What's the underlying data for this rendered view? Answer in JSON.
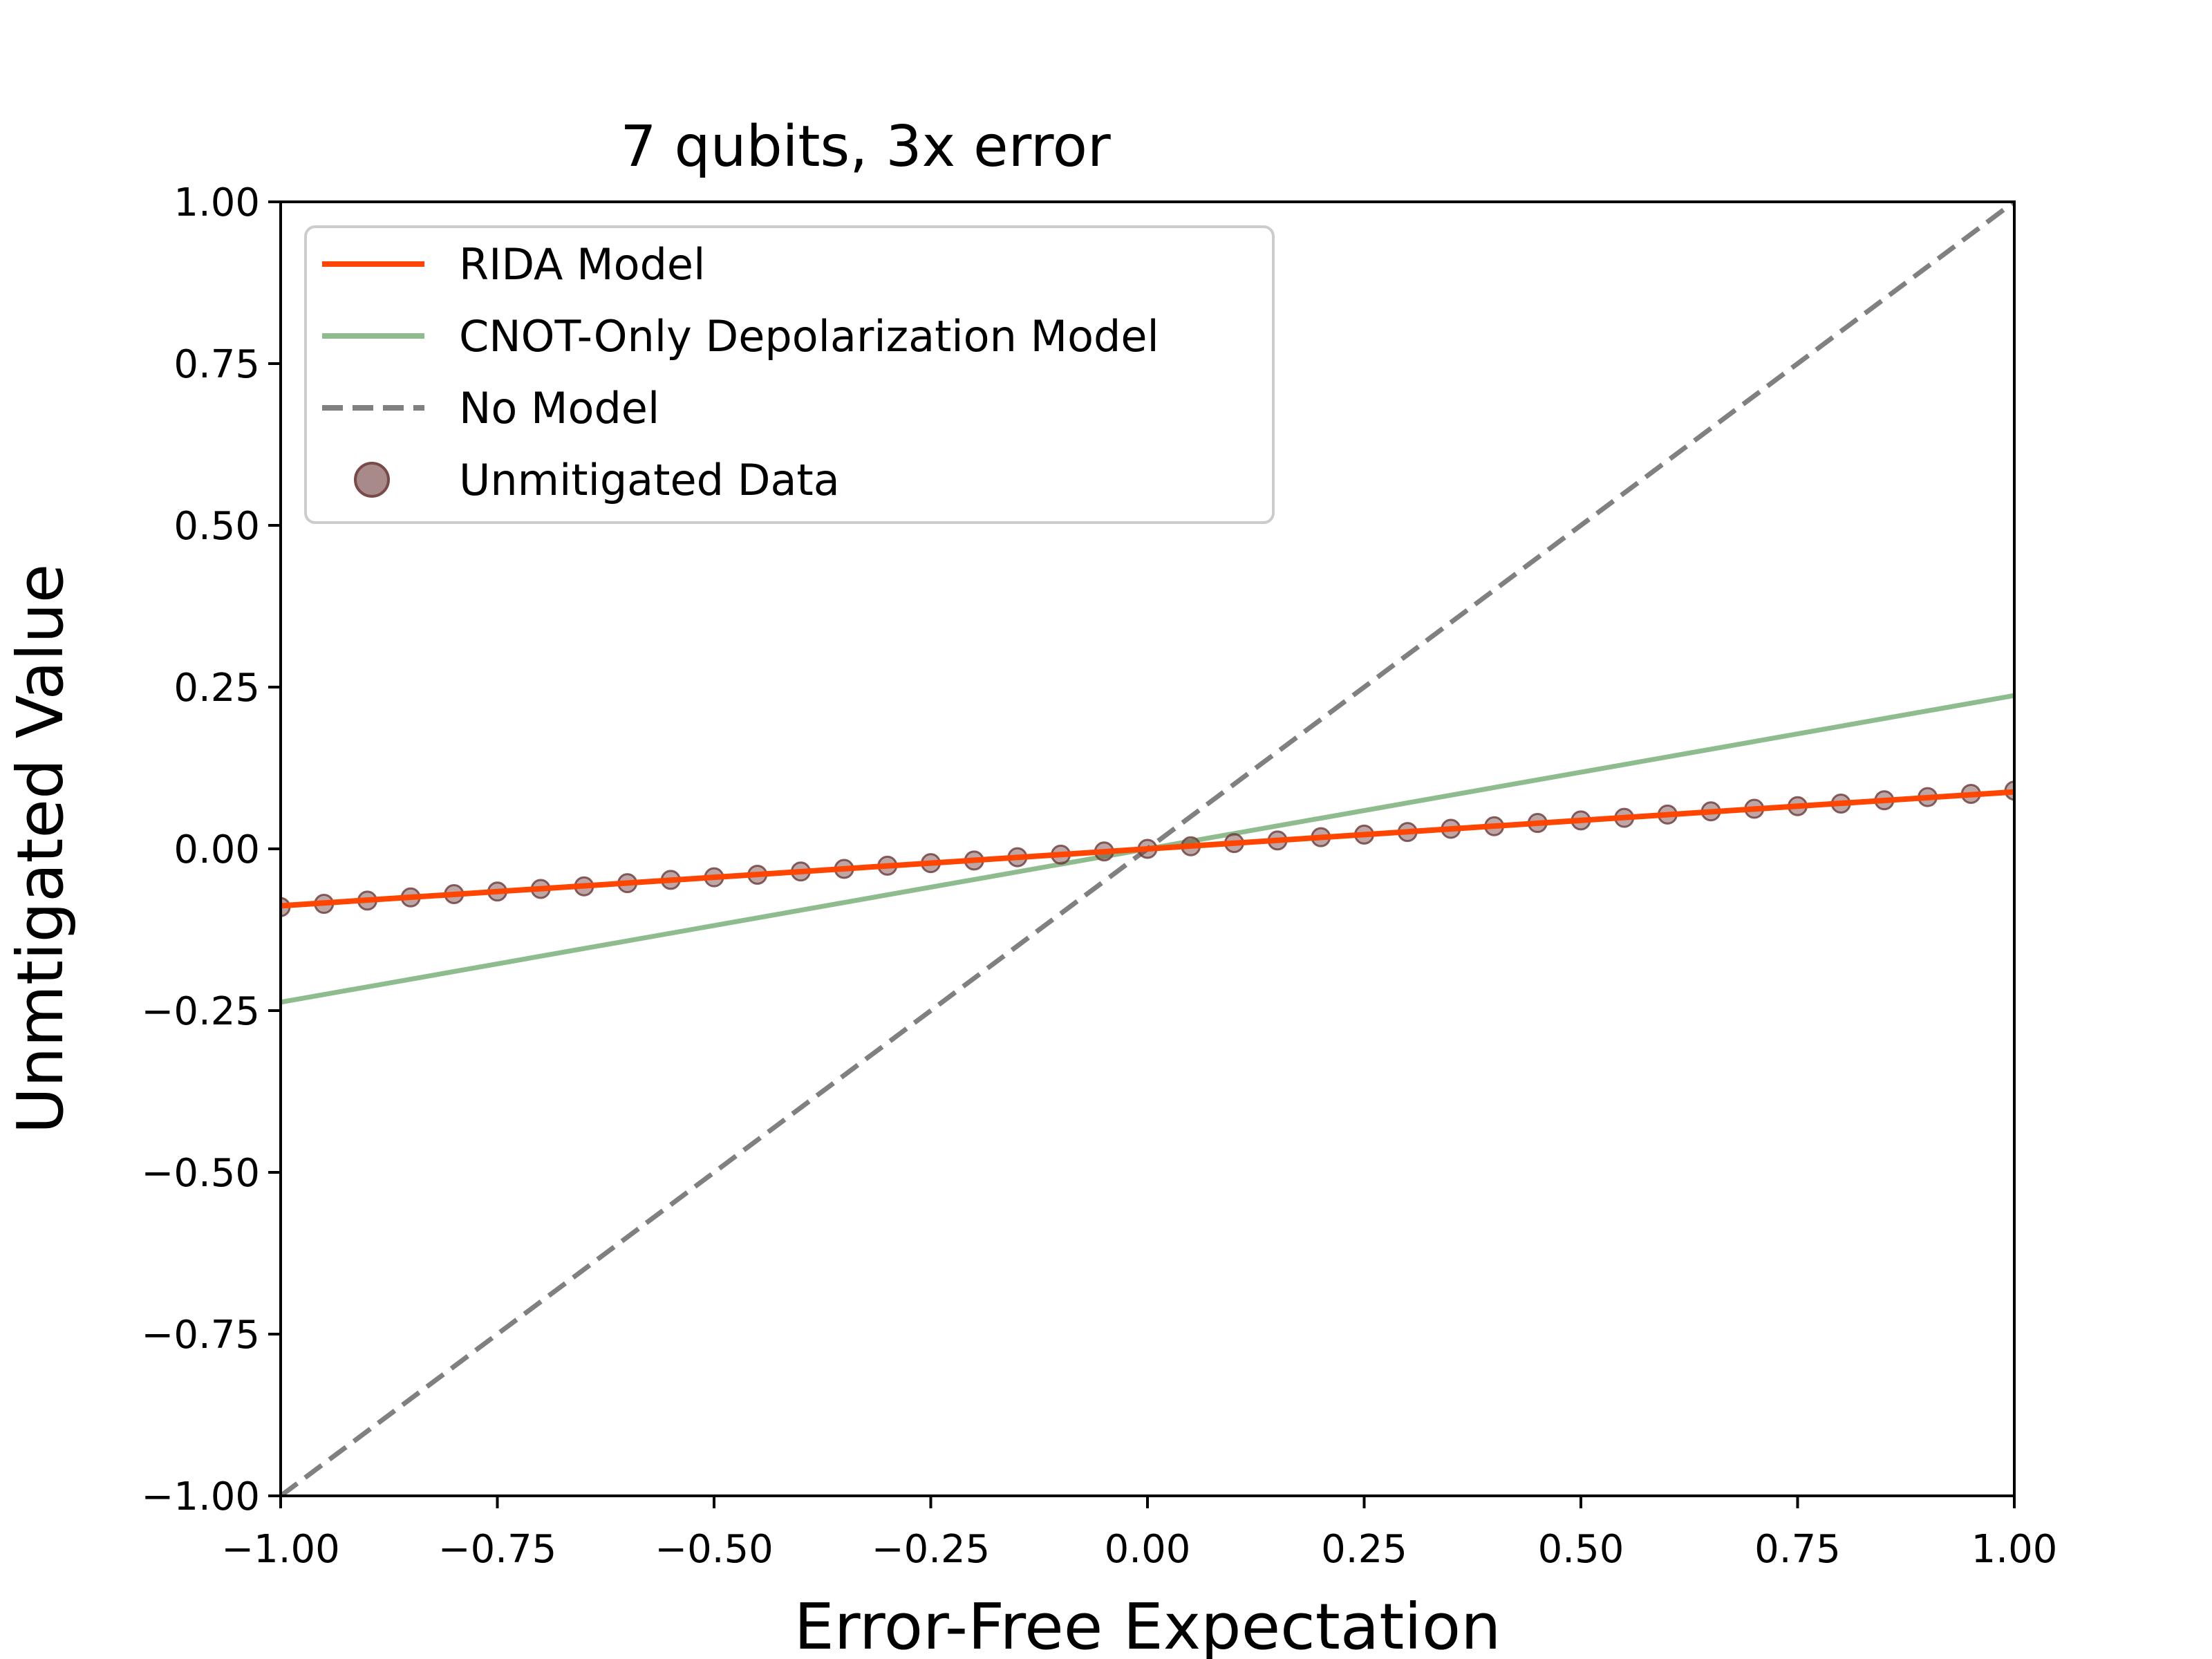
{
  "chart_data": {
    "type": "scatter",
    "title": "7 qubits, 3x error",
    "xlabel": "Error-Free Expectation",
    "ylabel": "Unmtigated Value",
    "xlim": [
      -1.0,
      1.0
    ],
    "ylim": [
      -1.0,
      1.0
    ],
    "xticks": [
      -1.0,
      -0.75,
      -0.5,
      -0.25,
      0.0,
      0.25,
      0.5,
      0.75,
      1.0
    ],
    "yticks": [
      -1.0,
      -0.75,
      -0.5,
      -0.25,
      0.0,
      0.25,
      0.5,
      0.75,
      1.0
    ],
    "xtick_labels": [
      "−1.00",
      "−0.75",
      "−0.50",
      "−0.25",
      "0.00",
      "0.25",
      "0.50",
      "0.75",
      "1.00"
    ],
    "ytick_labels": [
      "−1.00",
      "−0.75",
      "−0.50",
      "−0.25",
      "0.00",
      "0.25",
      "0.50",
      "0.75",
      "1.00"
    ],
    "grid": false,
    "legend_position": "top-left",
    "series": [
      {
        "name": "RIDA Model",
        "kind": "line",
        "color": "#ff4500",
        "style": "solid",
        "x": [
          -1.0,
          1.0
        ],
        "y": [
          -0.088,
          0.088
        ]
      },
      {
        "name": "CNOT-Only Depolarization Model",
        "kind": "line",
        "color": "#8fbc8f",
        "style": "solid",
        "x": [
          -1.0,
          1.0
        ],
        "y": [
          -0.237,
          0.237
        ]
      },
      {
        "name": "No Model",
        "kind": "line",
        "color": "#808080",
        "style": "dashed",
        "x": [
          -1.0,
          1.0
        ],
        "y": [
          -1.0,
          1.0
        ]
      },
      {
        "name": "Unmitigated Data",
        "kind": "scatter",
        "color": "#6b3a3a",
        "x": [
          -1.0,
          -0.95,
          -0.9,
          -0.85,
          -0.8,
          -0.75,
          -0.7,
          -0.65,
          -0.6,
          -0.55,
          -0.5,
          -0.45,
          -0.4,
          -0.35,
          -0.3,
          -0.25,
          -0.2,
          -0.15,
          -0.1,
          -0.05,
          0.0,
          0.05,
          0.1,
          0.15,
          0.2,
          0.25,
          0.3,
          0.35,
          0.4,
          0.45,
          0.5,
          0.55,
          0.6,
          0.65,
          0.7,
          0.75,
          0.8,
          0.85,
          0.9,
          0.95,
          1.0
        ],
        "y": [
          -0.09,
          -0.085,
          -0.08,
          -0.075,
          -0.07,
          -0.066,
          -0.062,
          -0.058,
          -0.053,
          -0.048,
          -0.044,
          -0.04,
          -0.035,
          -0.031,
          -0.026,
          -0.022,
          -0.018,
          -0.013,
          -0.009,
          -0.004,
          0.0,
          0.004,
          0.009,
          0.013,
          0.018,
          0.022,
          0.026,
          0.031,
          0.035,
          0.04,
          0.044,
          0.048,
          0.053,
          0.058,
          0.062,
          0.066,
          0.07,
          0.075,
          0.08,
          0.085,
          0.09
        ]
      }
    ]
  }
}
